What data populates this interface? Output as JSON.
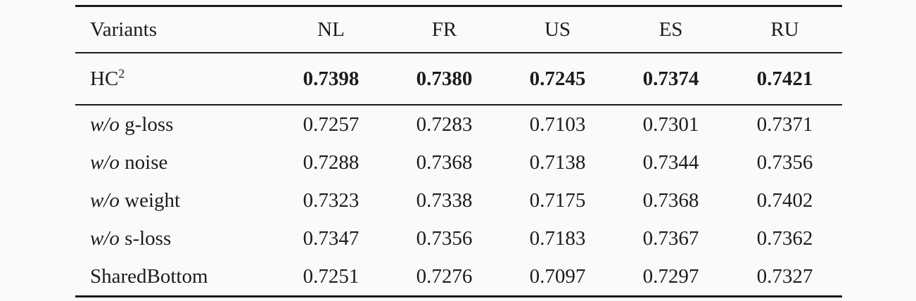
{
  "colors": {
    "background": "#fafaf8",
    "text": "#1c1c1c",
    "rule": "#1a1a1a"
  },
  "table": {
    "columns": [
      "Variants",
      "NL",
      "FR",
      "US",
      "ES",
      "RU"
    ],
    "hc_row": {
      "label_base": "HC",
      "label_sup": "2",
      "values": [
        "0.7398",
        "0.7380",
        "0.7245",
        "0.7374",
        "0.7421"
      ]
    },
    "rows": [
      {
        "prefix": "w/o",
        "name": " g-loss",
        "values": [
          "0.7257",
          "0.7283",
          "0.7103",
          "0.7301",
          "0.7371"
        ]
      },
      {
        "prefix": "w/o",
        "name": " noise",
        "values": [
          "0.7288",
          "0.7368",
          "0.7138",
          "0.7344",
          "0.7356"
        ]
      },
      {
        "prefix": "w/o",
        "name": " weight",
        "values": [
          "0.7323",
          "0.7338",
          "0.7175",
          "0.7368",
          "0.7402"
        ]
      },
      {
        "prefix": "w/o",
        "name": " s-loss",
        "values": [
          "0.7347",
          "0.7356",
          "0.7183",
          "0.7367",
          "0.7362"
        ]
      },
      {
        "prefix": "",
        "name": "SharedBottom",
        "values": [
          "0.7251",
          "0.7276",
          "0.7097",
          "0.7297",
          "0.7327"
        ]
      }
    ]
  }
}
